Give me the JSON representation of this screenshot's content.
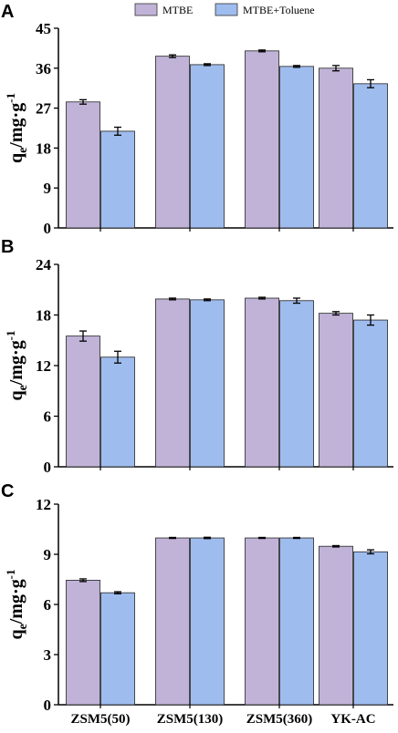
{
  "legend": {
    "items": [
      {
        "label": "MTBE",
        "color": "#c0b3d7"
      },
      {
        "label": "MTBE+Toluene",
        "color": "#9fbcee"
      }
    ]
  },
  "colors": {
    "bar_border": "#222222",
    "axis": "#000000"
  },
  "chart_data": [
    {
      "panel": "A",
      "type": "bar",
      "ylabel": "q_e/mg·g^-1",
      "ylim": [
        0,
        45
      ],
      "yticks": [
        "0",
        "9",
        "18",
        "27",
        "36",
        "45"
      ],
      "categories": [
        "ZSM5(50)",
        "ZSM5(130)",
        "ZSM5(360)",
        "YK-AC"
      ],
      "series": [
        {
          "name": "MTBE",
          "values": [
            28.4,
            38.7,
            39.9,
            36.0
          ],
          "errors": [
            0.5,
            0.3,
            0.2,
            0.6
          ]
        },
        {
          "name": "MTBE+Toluene",
          "values": [
            21.8,
            36.8,
            36.4,
            32.5
          ],
          "errors": [
            0.9,
            0.2,
            0.2,
            0.9
          ]
        }
      ]
    },
    {
      "panel": "B",
      "type": "bar",
      "ylabel": "q_e/mg·g^-1",
      "ylim": [
        0,
        24
      ],
      "yticks": [
        "0",
        "6",
        "12",
        "18",
        "24"
      ],
      "categories": [
        "ZSM5(50)",
        "ZSM5(130)",
        "ZSM5(360)",
        "YK-AC"
      ],
      "series": [
        {
          "name": "MTBE",
          "values": [
            15.5,
            19.9,
            20.0,
            18.2
          ],
          "errors": [
            0.6,
            0.1,
            0.1,
            0.2
          ]
        },
        {
          "name": "MTBE+Toluene",
          "values": [
            13.0,
            19.8,
            19.7,
            17.4
          ],
          "errors": [
            0.7,
            0.1,
            0.3,
            0.6
          ]
        }
      ]
    },
    {
      "panel": "C",
      "type": "bar",
      "ylabel": "q_e/mg·g^-1",
      "ylim": [
        0,
        12
      ],
      "yticks": [
        "0",
        "3",
        "6",
        "9",
        "12"
      ],
      "categories": [
        "ZSM5(50)",
        "ZSM5(130)",
        "ZSM5(360)",
        "YK-AC"
      ],
      "series": [
        {
          "name": "MTBE",
          "values": [
            7.45,
            9.98,
            9.98,
            9.48
          ],
          "errors": [
            0.08,
            0.03,
            0.03,
            0.04
          ]
        },
        {
          "name": "MTBE+Toluene",
          "values": [
            6.7,
            9.98,
            9.98,
            9.15
          ],
          "errors": [
            0.06,
            0.04,
            0.03,
            0.12
          ]
        }
      ]
    }
  ]
}
